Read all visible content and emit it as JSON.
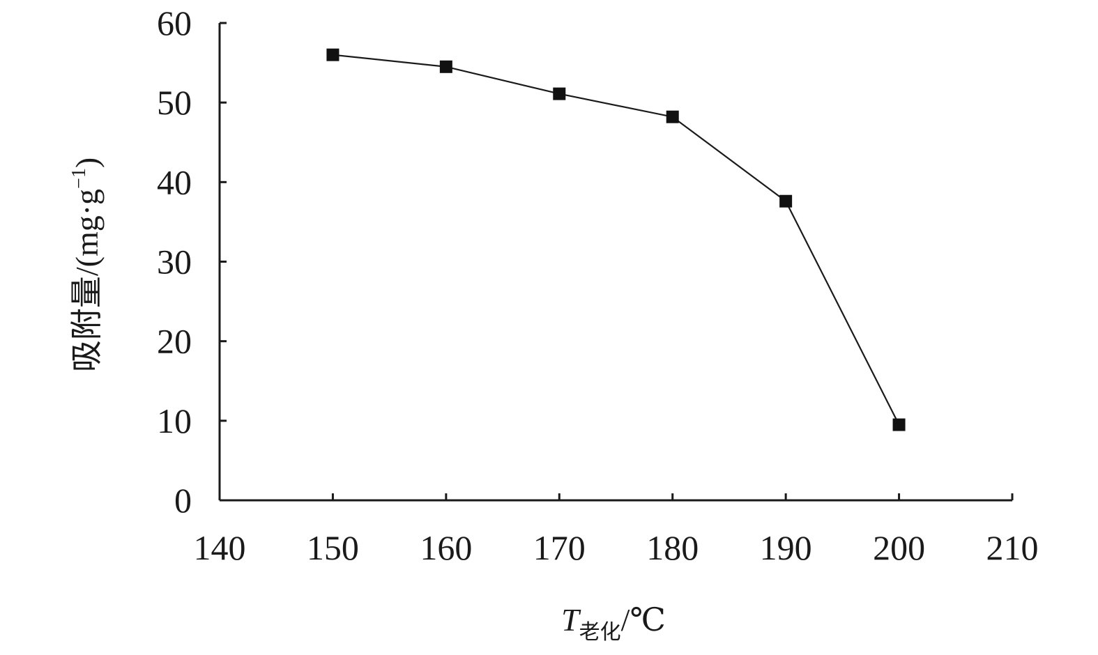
{
  "chart_data": {
    "type": "line",
    "title": "",
    "xlabel": {
      "main": "T",
      "subscript": "老化",
      "unit": "/℃"
    },
    "ylabel": {
      "main": "吸附量/(mg·g",
      "superscript": "−1",
      "close": ")"
    },
    "xlim": [
      140,
      210
    ],
    "ylim": [
      0,
      60
    ],
    "xticks": [
      140,
      150,
      160,
      170,
      180,
      190,
      200,
      210
    ],
    "yticks": [
      0,
      10,
      20,
      30,
      40,
      50,
      60
    ],
    "grid": false,
    "legend": "none",
    "marker": "square",
    "colors": {
      "line": "#1a1a1a",
      "marker": "#111111"
    },
    "series": [
      {
        "x": [
          150,
          160,
          170,
          180,
          190,
          200
        ],
        "values": [
          56.0,
          54.5,
          51.1,
          48.2,
          37.6,
          9.5
        ]
      }
    ]
  }
}
